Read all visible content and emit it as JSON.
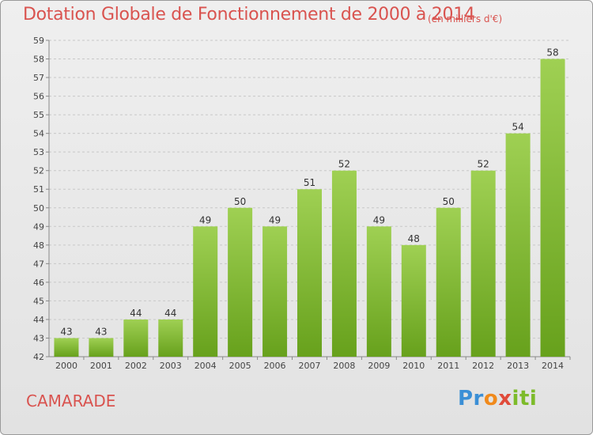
{
  "chart_data": {
    "type": "bar",
    "title": "Dotation Globale de Fonctionnement de 2000 à 2014",
    "subtitle": "(en milliers d'€)",
    "categories": [
      "2000",
      "2001",
      "2002",
      "2003",
      "2004",
      "2005",
      "2006",
      "2007",
      "2008",
      "2009",
      "2010",
      "2011",
      "2012",
      "2013",
      "2014"
    ],
    "values": [
      43,
      43,
      44,
      44,
      49,
      50,
      49,
      51,
      52,
      49,
      48,
      50,
      52,
      54,
      58
    ],
    "ylim": [
      42,
      59
    ],
    "yticks": [
      42,
      43,
      44,
      45,
      46,
      47,
      48,
      49,
      50,
      51,
      52,
      53,
      54,
      55,
      56,
      57,
      58,
      59
    ],
    "grid": true,
    "bar_color_top": "#9fd053",
    "bar_color_bottom": "#67a11c"
  },
  "footer": {
    "commune": "CAMARADE",
    "logo_text": "Proxiti"
  }
}
